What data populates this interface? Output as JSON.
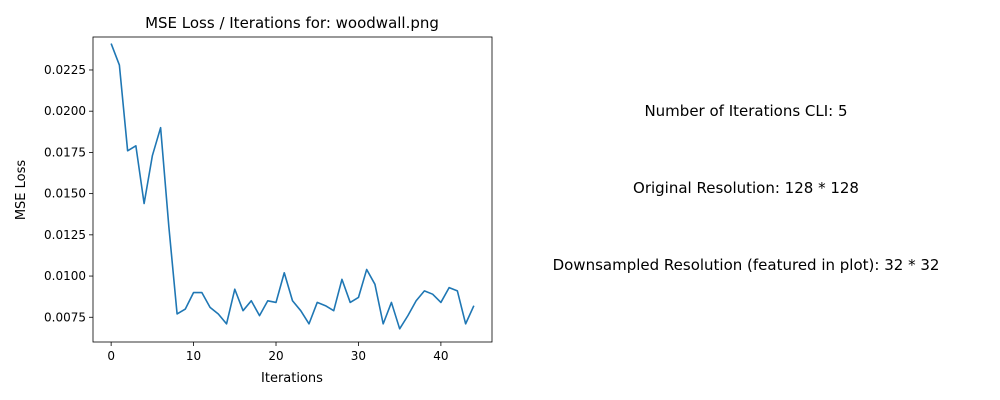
{
  "chart_data": {
    "type": "line",
    "title": "MSE Loss / Iterations for: woodwall.png",
    "xlabel": "Iterations",
    "ylabel": "MSE Loss",
    "xlim": [
      -2.2,
      46.2
    ],
    "ylim": [
      0.006,
      0.0245
    ],
    "x_ticks": [
      0,
      10,
      20,
      30,
      40
    ],
    "y_ticks": [
      0.0075,
      0.01,
      0.0125,
      0.015,
      0.0175,
      0.02,
      0.0225
    ],
    "x_tick_labels": [
      "0",
      "10",
      "20",
      "30",
      "40"
    ],
    "y_tick_labels": [
      "0.0075",
      "0.0100",
      "0.0125",
      "0.0150",
      "0.0175",
      "0.0200",
      "0.0225"
    ],
    "grid": false,
    "line_color": "#1f77b4",
    "x": [
      0,
      1,
      2,
      3,
      4,
      5,
      6,
      7,
      8,
      9,
      10,
      11,
      12,
      13,
      14,
      15,
      16,
      17,
      18,
      19,
      20,
      21,
      22,
      23,
      24,
      25,
      26,
      27,
      28,
      29,
      30,
      31,
      32,
      33,
      34,
      35,
      36,
      37,
      38,
      39,
      40,
      41,
      42,
      43,
      44
    ],
    "y": [
      0.0241,
      0.0228,
      0.0176,
      0.0179,
      0.0144,
      0.0173,
      0.019,
      0.013,
      0.0077,
      0.008,
      0.009,
      0.009,
      0.0081,
      0.0077,
      0.0071,
      0.0092,
      0.0079,
      0.0085,
      0.0076,
      0.0085,
      0.0084,
      0.0102,
      0.0085,
      0.0079,
      0.0071,
      0.0084,
      0.0082,
      0.0079,
      0.0098,
      0.0084,
      0.0087,
      0.0104,
      0.0095,
      0.0071,
      0.0084,
      0.0068,
      0.0076,
      0.0085,
      0.0091,
      0.0089,
      0.0084,
      0.0093,
      0.0091,
      0.0071,
      0.0082
    ]
  },
  "info": {
    "iterations_cli": "Number of Iterations CLI: 5",
    "original_resolution": "Original Resolution: 128 * 128",
    "downsampled_resolution": "Downsampled Resolution (featured in plot): 32 * 32"
  }
}
